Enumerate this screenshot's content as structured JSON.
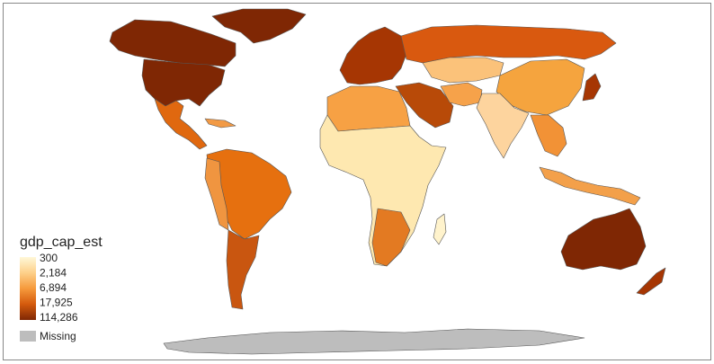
{
  "legend": {
    "title": "gdp_cap_est",
    "breaks": [
      "300",
      "2,184",
      "6,894",
      "17,925",
      "114,286"
    ],
    "missing": "Missing"
  }
}
